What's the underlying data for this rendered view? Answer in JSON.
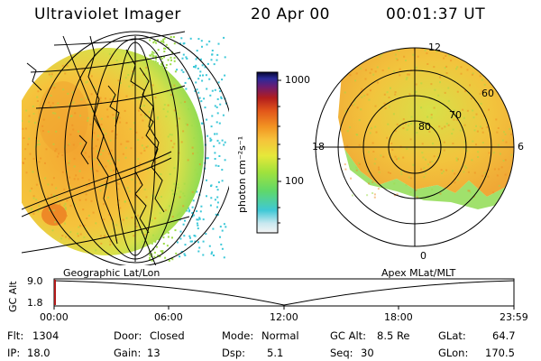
{
  "header": {
    "instrument": "Ultraviolet Imager",
    "date": "20 Apr 00",
    "time": "00:01:37 UT"
  },
  "colorbar": {
    "unit_label": "photon cm⁻²s⁻¹",
    "ticks": [
      "1000",
      "100"
    ],
    "scale": "log"
  },
  "polar": {
    "lat_labels": [
      "80",
      "70",
      "60"
    ],
    "mlt_labels": [
      "12",
      "18",
      "6",
      "0"
    ]
  },
  "panels": {
    "left_label": "Geographic Lat/Lon",
    "right_label": "Apex MLat/MLT"
  },
  "altitude_plot": {
    "ylabel": "GC Alt",
    "yticks": [
      "9.0",
      "1.8"
    ],
    "xticks": [
      "00:00",
      "06:00",
      "12:00",
      "18:00",
      "23:59"
    ]
  },
  "footer": {
    "flt_label": "Flt:",
    "flt_value": "1304",
    "ip_label": "IP:",
    "ip_value": "18.0",
    "door_label": "Door:",
    "door_value": "Closed",
    "gain_label": "Gain:",
    "gain_value": "13",
    "mode_label": "Mode:",
    "mode_value": "Normal",
    "dsp_label": "Dsp:",
    "dsp_value": "5.1",
    "gcalt_label": "GC Alt:",
    "gcalt_value": "8.5 Re",
    "seq_label": "Seq:",
    "seq_value": "30",
    "glat_label": "GLat:",
    "glat_value": "64.7",
    "glon_label": "GLon:",
    "glon_value": "170.5"
  },
  "colors": {
    "background": "#ffffff",
    "text": "#000000",
    "dayglow_main": "#f2b135",
    "dayglow_bright": "#ef8a22",
    "dayglow_edge": "#9ddc47",
    "dayglow_fringe": "#3cc8d8"
  }
}
